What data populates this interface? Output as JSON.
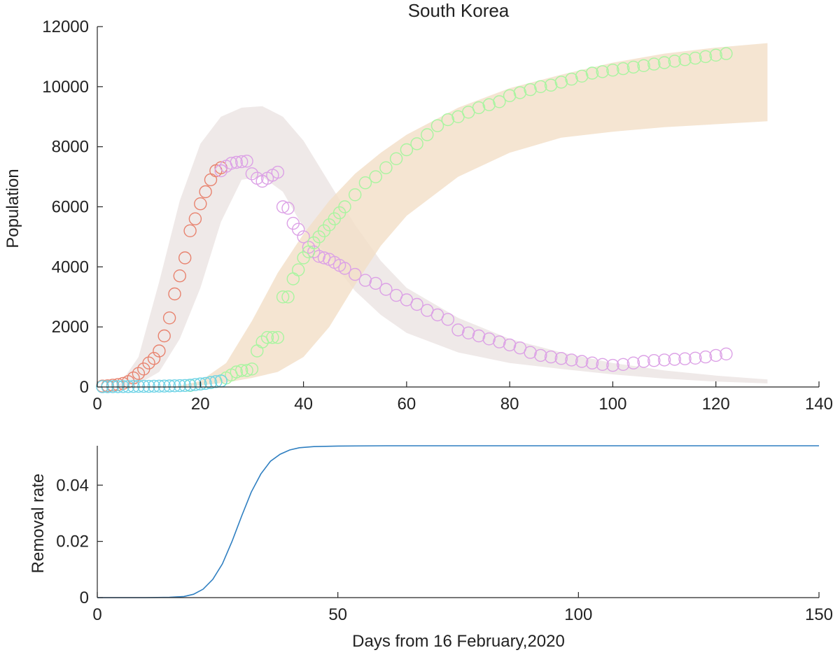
{
  "chart_data": [
    {
      "type": "scatter",
      "title": "South Korea",
      "xlabel": "",
      "ylabel": "Population",
      "xlim": [
        0,
        140
      ],
      "ylim": [
        0,
        12000
      ],
      "xticks": [
        0,
        20,
        40,
        60,
        80,
        100,
        120,
        140
      ],
      "yticks": [
        0,
        2000,
        4000,
        6000,
        8000,
        10000,
        12000
      ],
      "grid": false,
      "bands": [
        {
          "color": "#ebe3e2",
          "x": [
            4,
            8,
            12,
            16,
            20,
            24,
            28,
            32,
            36,
            40,
            45,
            50,
            55,
            60,
            70,
            80,
            90,
            100,
            110,
            120,
            130
          ],
          "upper": [
            0,
            1000,
            3500,
            6200,
            8100,
            9000,
            9300,
            9350,
            9000,
            8200,
            6800,
            5400,
            4200,
            3300,
            2300,
            1600,
            1150,
            800,
            550,
            380,
            250
          ],
          "lower": [
            0,
            100,
            500,
            1600,
            3300,
            5500,
            6900,
            7000,
            6500,
            5300,
            4300,
            3200,
            2400,
            1800,
            1150,
            800,
            600,
            420,
            280,
            180,
            120
          ]
        },
        {
          "color": "#f2dfc7",
          "x": [
            15,
            20,
            25,
            30,
            35,
            40,
            45,
            50,
            55,
            60,
            70,
            80,
            90,
            100,
            110,
            120,
            130
          ],
          "upper": [
            0,
            200,
            800,
            2200,
            3800,
            5100,
            6200,
            7100,
            7800,
            8400,
            9300,
            9950,
            10400,
            10800,
            11100,
            11300,
            11450
          ],
          "lower": [
            0,
            50,
            150,
            300,
            500,
            1000,
            2000,
            3400,
            4700,
            5700,
            7000,
            7800,
            8300,
            8500,
            8650,
            8750,
            8850
          ]
        }
      ],
      "series": [
        {
          "color": "#e8836f",
          "x": [
            1,
            2,
            3,
            4,
            5,
            6,
            7,
            8,
            9,
            10,
            11,
            12,
            13,
            14,
            15,
            16,
            17,
            18,
            19,
            20,
            21,
            22,
            23,
            24
          ],
          "values": [
            30,
            40,
            60,
            80,
            120,
            180,
            300,
            450,
            600,
            800,
            950,
            1200,
            1700,
            2300,
            3100,
            3700,
            4300,
            5200,
            5600,
            6100,
            6500,
            6900,
            7200,
            7300
          ]
        },
        {
          "color": "#dca1e6",
          "x": [
            24,
            25,
            26,
            27,
            28,
            29,
            30,
            31,
            32,
            33,
            34,
            35,
            36,
            37,
            38,
            39,
            40,
            41,
            42,
            43,
            44,
            45,
            46,
            47,
            48,
            50,
            52,
            54,
            56,
            58,
            60,
            62,
            64,
            66,
            68,
            70,
            72,
            74,
            76,
            78,
            80,
            82,
            84,
            86,
            88,
            90,
            92,
            94,
            96,
            98,
            100,
            102,
            104,
            106,
            108,
            110,
            112,
            114,
            116,
            118,
            120,
            122
          ],
          "values": [
            7200,
            7350,
            7450,
            7480,
            7500,
            7520,
            7100,
            6950,
            6850,
            6950,
            7050,
            7150,
            6000,
            5950,
            5450,
            5250,
            5000,
            4650,
            4500,
            4350,
            4300,
            4250,
            4150,
            4050,
            3950,
            3750,
            3550,
            3450,
            3250,
            3050,
            2900,
            2750,
            2550,
            2400,
            2250,
            1900,
            1800,
            1700,
            1600,
            1500,
            1400,
            1300,
            1150,
            1050,
            1000,
            950,
            900,
            850,
            800,
            750,
            720,
            750,
            800,
            850,
            880,
            900,
            920,
            940,
            960,
            1000,
            1050,
            1100
          ]
        },
        {
          "color": "#a8f5a0",
          "x": [
            18,
            20,
            22,
            24,
            25,
            26,
            27,
            28,
            29,
            30,
            31,
            32,
            33,
            34,
            35,
            36,
            37,
            38,
            39,
            40,
            41,
            42,
            43,
            44,
            45,
            46,
            47,
            48,
            50,
            52,
            54,
            56,
            58,
            60,
            62,
            64,
            66,
            68,
            70,
            72,
            74,
            76,
            78,
            80,
            82,
            84,
            86,
            88,
            90,
            92,
            94,
            96,
            98,
            100,
            102,
            104,
            106,
            108,
            110,
            112,
            114,
            116,
            118,
            120,
            122
          ],
          "values": [
            50,
            100,
            150,
            200,
            300,
            400,
            500,
            550,
            550,
            600,
            1200,
            1500,
            1650,
            1650,
            1650,
            3000,
            3000,
            3600,
            3900,
            4300,
            4500,
            4800,
            5000,
            5200,
            5400,
            5600,
            5800,
            6000,
            6400,
            6800,
            7000,
            7300,
            7600,
            7900,
            8100,
            8400,
            8700,
            8900,
            9000,
            9150,
            9300,
            9400,
            9500,
            9700,
            9800,
            9900,
            10000,
            10050,
            10150,
            10250,
            10350,
            10450,
            10500,
            10550,
            10600,
            10650,
            10700,
            10750,
            10800,
            10850,
            10900,
            10950,
            11000,
            11050,
            11100
          ]
        },
        {
          "color": "#6fd3e6",
          "x": [
            1,
            2,
            3,
            4,
            5,
            6,
            7,
            8,
            9,
            10,
            11,
            12,
            13,
            14,
            15,
            16,
            17,
            18,
            19,
            20,
            21,
            22,
            23,
            24
          ],
          "values": [
            10,
            10,
            12,
            12,
            15,
            15,
            18,
            20,
            20,
            22,
            25,
            28,
            30,
            35,
            40,
            45,
            50,
            60,
            80,
            100,
            120,
            150,
            180,
            200
          ]
        }
      ]
    },
    {
      "type": "line",
      "title": "",
      "xlabel": "Days from 16 February,2020",
      "ylabel": "Removal rate",
      "xlim": [
        0,
        150
      ],
      "ylim": [
        0,
        0.054
      ],
      "xticks": [
        0,
        50,
        100,
        150
      ],
      "yticks": [
        0,
        0.02,
        0.04
      ],
      "ytick_labels": [
        "0",
        "0.02",
        "0.04"
      ],
      "grid": false,
      "series": [
        {
          "color": "#2f7fc1",
          "x": [
            0,
            10,
            15,
            18,
            20,
            22,
            24,
            26,
            28,
            30,
            32,
            34,
            36,
            38,
            40,
            42,
            45,
            50,
            60,
            80,
            100,
            120,
            150
          ],
          "values": [
            0,
            0,
            0.0001,
            0.0004,
            0.0012,
            0.003,
            0.0065,
            0.012,
            0.02,
            0.029,
            0.0375,
            0.044,
            0.0485,
            0.051,
            0.0525,
            0.0533,
            0.0537,
            0.0539,
            0.054,
            0.054,
            0.054,
            0.054,
            0.054
          ]
        }
      ]
    }
  ]
}
